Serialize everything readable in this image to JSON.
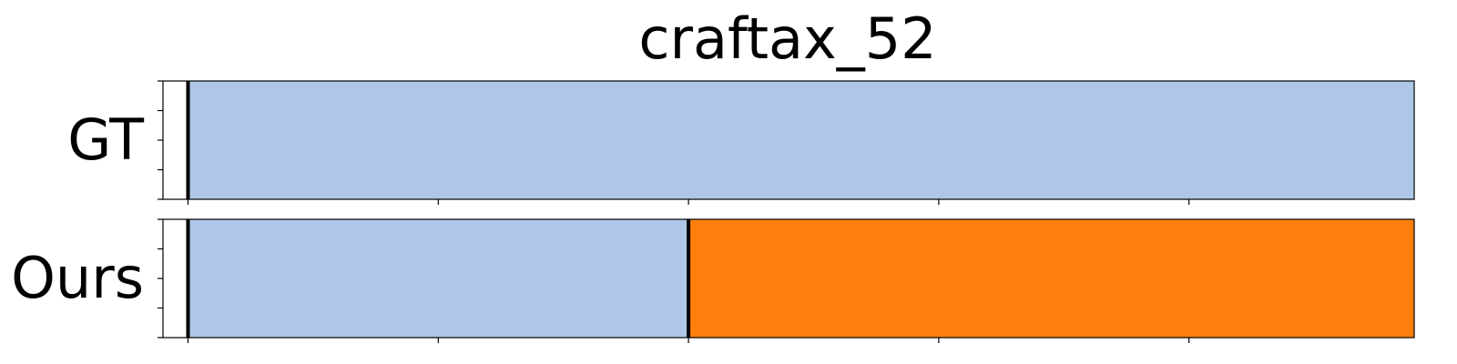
{
  "chart_data": {
    "type": "bar",
    "title": "craftax_52",
    "xlim": [
      -50,
      2450
    ],
    "xticks": [
      0,
      500,
      1000,
      1500,
      2000,
      2500
    ],
    "rows": [
      {
        "label": "GT",
        "segments": [
          {
            "start": 0,
            "end": 2500,
            "color": "#aec7e8"
          }
        ],
        "boundaries": [
          0,
          2500
        ]
      },
      {
        "label": "Ours",
        "segments": [
          {
            "start": 0,
            "end": 1000,
            "color": "#aec7e8"
          },
          {
            "start": 1000,
            "end": 2500,
            "color": "#ff7f0e"
          }
        ],
        "boundaries": [
          0,
          1000,
          2500
        ]
      }
    ],
    "colors": {
      "segment_a": "#aec7e8",
      "segment_b": "#ff7f0e",
      "boundary": "#000000"
    }
  }
}
